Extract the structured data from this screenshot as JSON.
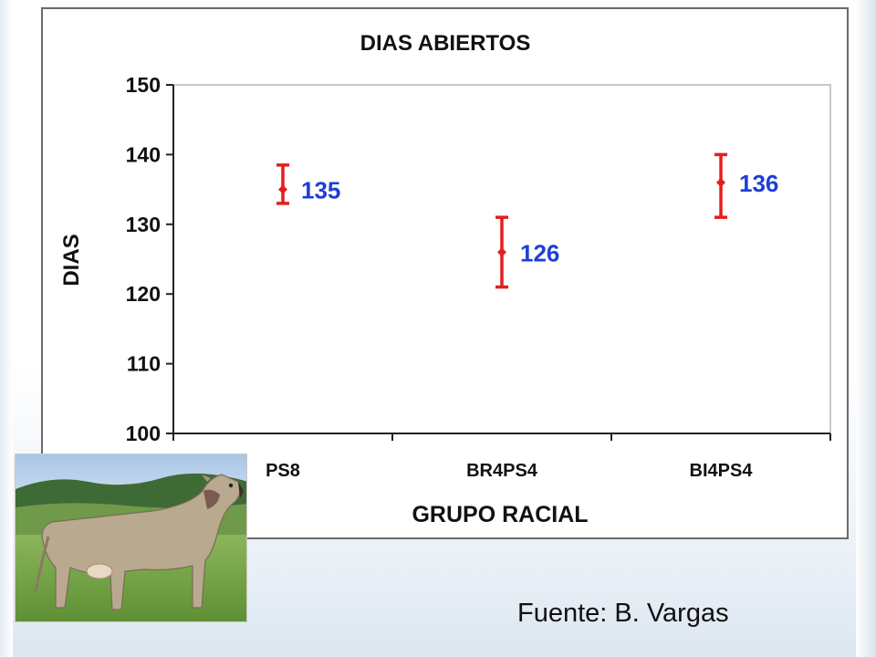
{
  "chart_data": {
    "type": "errorbar",
    "title": "DIAS ABIERTOS",
    "xlabel": "GRUPO RACIAL",
    "ylabel": "DIAS",
    "categories": [
      "PS8",
      "BR4PS4",
      "BI4PS4"
    ],
    "values": [
      135,
      126,
      136
    ],
    "data_labels": [
      "135",
      "126",
      "136"
    ],
    "error_low": [
      133,
      121,
      131
    ],
    "error_high": [
      138.5,
      131,
      140
    ],
    "ylim": [
      100,
      150
    ],
    "yticks": [
      "100",
      "110",
      "120",
      "130",
      "140",
      "150"
    ],
    "grid": false,
    "colors": {
      "marker": "#e41e1e",
      "label": "#1d3fd6"
    }
  },
  "photo": {
    "subject": "cow-photo"
  },
  "source_text": "Fuente: B. Vargas"
}
